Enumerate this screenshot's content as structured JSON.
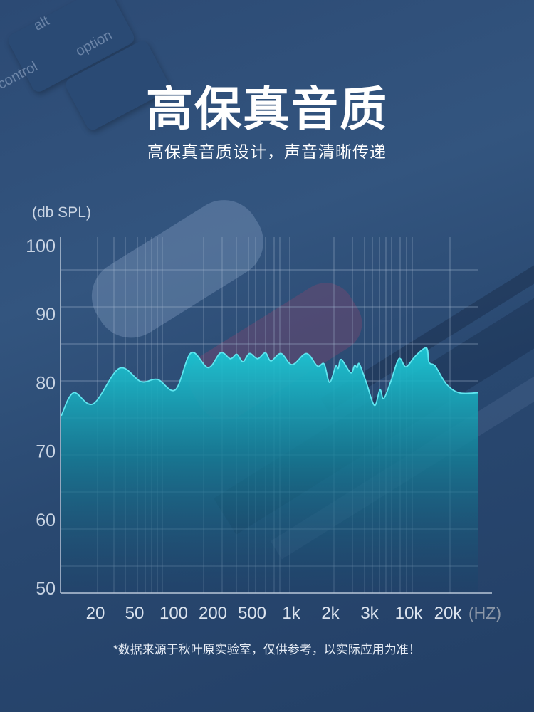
{
  "header": {
    "title": "高保真音质",
    "subtitle": "高保真音质设计，声音清晰传递"
  },
  "background_keys": [
    "alt",
    "option",
    "control"
  ],
  "footnote": "*数据来源于秋叶原实验室，仅供参考，以实际应用为准！",
  "colors": {
    "background": "#2b4a74",
    "curve_stroke": "#5fe6f0",
    "fill_top": "#1cc9d6",
    "fill_bottom": "#1a3f66",
    "grid": "#9fb3cc"
  },
  "chart_data": {
    "type": "area",
    "title": "",
    "ylabel": "(db SPL)",
    "xunit": "(HZ)",
    "yticks": [
      100,
      90,
      80,
      70,
      60,
      50
    ],
    "ylim": [
      50,
      100
    ],
    "xticks": [
      "20",
      "50",
      "100",
      "200",
      "500",
      "1k",
      "2k",
      "3k",
      "10k",
      "20k"
    ],
    "xtick_values": [
      20,
      50,
      100,
      200,
      500,
      1000,
      2000,
      3000,
      10000,
      20000
    ],
    "grid": true,
    "series": [
      {
        "x": [
          9,
          12,
          19,
          35,
          56,
          75,
          103,
          136,
          184,
          240,
          302,
          350,
          404,
          471,
          552,
          633,
          697,
          835,
          1016,
          1310,
          1590,
          1790,
          1970,
          2115,
          2170,
          2240,
          2470,
          2570,
          2640,
          2700,
          2900,
          3490,
          4130,
          4630,
          5760,
          7410,
          9180,
          11170,
          13200,
          13950,
          14340,
          16000,
          19450,
          24400,
          34100
        ],
        "y": [
          75.3,
          78.4,
          76.9,
          81.7,
          79.9,
          80.2,
          78.8,
          83.8,
          81.8,
          83.8,
          83.0,
          83.6,
          82.6,
          83.7,
          83.0,
          83.8,
          82.7,
          83.7,
          82.2,
          83.7,
          82.0,
          82.3,
          79.8,
          82.0,
          81.7,
          82.9,
          81.1,
          82.1,
          81.8,
          82.3,
          79.8,
          76.7,
          78.8,
          77.6,
          79.9,
          83.0,
          81.9,
          83.3,
          84.4,
          84.2,
          82.5,
          82.0,
          79.6,
          78.4,
          78.4
        ]
      }
    ]
  }
}
